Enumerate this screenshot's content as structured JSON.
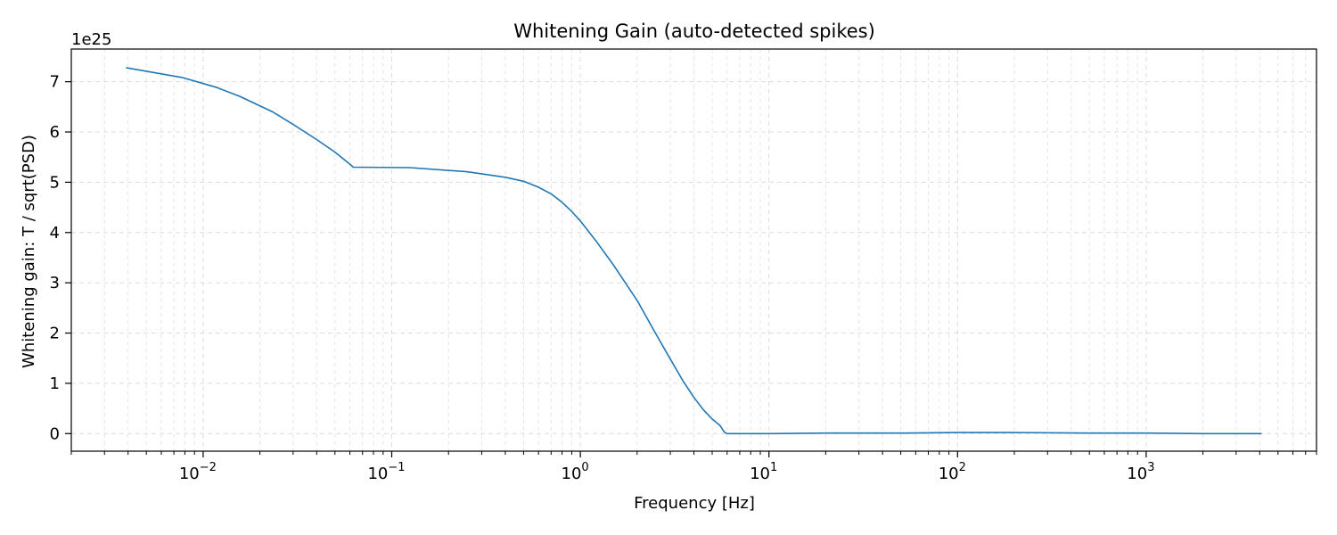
{
  "chart_data": {
    "type": "line",
    "title": "Whitening Gain (auto-detected spikes)",
    "xlabel": "Frequency [Hz]",
    "ylabel": "Whitening gain: T / sqrt(PSD)",
    "y_offset_label": "1e25",
    "x_scale": "log",
    "xlim": [
      0.002,
      8000
    ],
    "ylim": [
      -0.35,
      7.65
    ],
    "grid": true,
    "line_color": "#1f77b4",
    "x_ticks": [
      {
        "value": 0.01,
        "base": "10",
        "exp": "−2"
      },
      {
        "value": 0.1,
        "base": "10",
        "exp": "−1"
      },
      {
        "value": 1,
        "base": "10",
        "exp": "0"
      },
      {
        "value": 10,
        "base": "10",
        "exp": "1"
      },
      {
        "value": 100,
        "base": "10",
        "exp": "2"
      },
      {
        "value": 1000,
        "base": "10",
        "exp": "3"
      }
    ],
    "y_ticks": [
      {
        "value": 0,
        "label": "0"
      },
      {
        "value": 1,
        "label": "1"
      },
      {
        "value": 2,
        "label": "2"
      },
      {
        "value": 3,
        "label": "3"
      },
      {
        "value": 4,
        "label": "4"
      },
      {
        "value": 5,
        "label": "5"
      },
      {
        "value": 6,
        "label": "6"
      },
      {
        "value": 7,
        "label": "7"
      }
    ],
    "series": [
      {
        "x": [
          0.0039,
          0.0078,
          0.0117,
          0.0156,
          0.0234,
          0.03,
          0.04,
          0.05,
          0.0605,
          0.0625,
          0.125,
          0.25,
          0.4,
          0.5,
          0.6,
          0.7,
          0.8,
          0.9,
          1.0,
          1.2,
          1.5,
          2.0,
          2.5,
          3.0,
          3.5,
          4.0,
          4.5,
          5.0,
          5.5,
          5.8,
          6.0,
          6.5,
          8,
          10,
          20,
          50,
          100,
          200,
          500,
          1000,
          2000,
          4096
        ],
        "y": [
          7.28,
          7.08,
          6.89,
          6.71,
          6.4,
          6.15,
          5.85,
          5.6,
          5.35,
          5.3,
          5.29,
          5.21,
          5.1,
          5.02,
          4.9,
          4.77,
          4.6,
          4.42,
          4.23,
          3.85,
          3.35,
          2.65,
          2.0,
          1.48,
          1.05,
          0.72,
          0.47,
          0.29,
          0.16,
          0.03,
          0.0,
          0.0,
          0.0,
          0.0,
          0.01,
          0.01,
          0.02,
          0.02,
          0.01,
          0.01,
          0.0,
          0.0
        ]
      }
    ]
  }
}
